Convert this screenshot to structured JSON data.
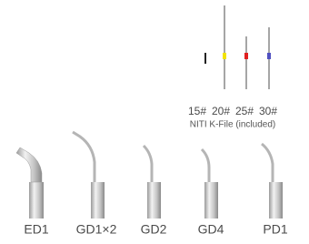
{
  "files": {
    "labels": [
      "15#",
      "20#",
      "25#",
      "30#"
    ],
    "caption": "NITI K-File (included)"
  },
  "tips": [
    "ED1",
    "GD1×2",
    "GD2",
    "GD4",
    "PD1"
  ]
}
